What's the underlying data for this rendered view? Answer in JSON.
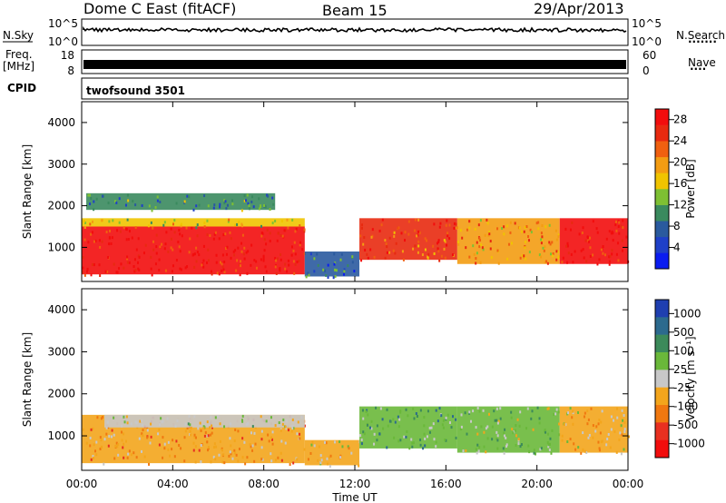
{
  "header": {
    "station": "Dome C East (fitACF)",
    "beam": "Beam 15",
    "date": "29/Apr/2013"
  },
  "strips": {
    "nsky_label": "N.Sky",
    "nsky_ticks": [
      "10^5",
      "10^0"
    ],
    "nsearch_label": "N.Search",
    "nsearch_dots": "·······",
    "freq_label": "Freq.",
    "freq_unit": "[MHz]",
    "freq_ticks": [
      "18",
      "8"
    ],
    "nave_ticks": [
      "60",
      "0"
    ],
    "nave_label": "Nave",
    "nave_dots": "····",
    "cpid_label": "CPID",
    "cpid_value": "twofsound 3501"
  },
  "axes": {
    "x_ticks": [
      "00:00",
      "04:00",
      "08:00",
      "12:00",
      "16:00",
      "20:00",
      "00:00"
    ],
    "x_label": "Time UT",
    "y_ticks": [
      "1000",
      "2000",
      "3000",
      "4000"
    ],
    "y_label": "Slant Range [km]"
  },
  "chart_data": [
    {
      "type": "heatmap",
      "name": "power",
      "title": "Beam 15",
      "xlabel": "Time UT",
      "ylabel": "Slant Range [km]",
      "xlim_hours": [
        0,
        24
      ],
      "ylim_km": [
        180,
        4500
      ],
      "colorbar": {
        "label": "Power [dB]",
        "ticks": [
          "4",
          "8",
          "12",
          "16",
          "20",
          "24",
          "28"
        ],
        "colors": [
          "#0a1cf0",
          "#1f40c8",
          "#2a5a9e",
          "#3a8a5e",
          "#7ec033",
          "#f0c400",
          "#f39c12",
          "#f06010",
          "#e82a10",
          "#f20d0d"
        ]
      },
      "regions": [
        {
          "t": [
            0,
            9.8
          ],
          "range_km": [
            350,
            1500
          ],
          "value_db": 28
        },
        {
          "t": [
            0,
            9.8
          ],
          "range_km": [
            1500,
            1700
          ],
          "value_db": 16
        },
        {
          "t": [
            0.2,
            8.5
          ],
          "range_km": [
            1900,
            2300
          ],
          "value_db": 10
        },
        {
          "t": [
            9.8,
            12.2
          ],
          "range_km": [
            300,
            900
          ],
          "value_db": 8
        },
        {
          "t": [
            12.2,
            16.5
          ],
          "range_km": [
            700,
            1700
          ],
          "value_db": 24
        },
        {
          "t": [
            16.5,
            21
          ],
          "range_km": [
            600,
            1700
          ],
          "value_db": 20
        },
        {
          "t": [
            21,
            24
          ],
          "range_km": [
            600,
            1700
          ],
          "value_db": 28
        }
      ]
    },
    {
      "type": "heatmap",
      "name": "velocity",
      "xlabel": "Time UT",
      "ylabel": "Slant Range [km]",
      "xlim_hours": [
        0,
        24
      ],
      "ylim_km": [
        180,
        4500
      ],
      "colorbar": {
        "label": "Velocity [m s⁻¹]",
        "ticks": [
          "1000",
          "500",
          "100",
          "25",
          "-25",
          "-100",
          "-500",
          "-1000"
        ],
        "colors": [
          "#1f3fb0",
          "#2c6a8e",
          "#3c8a5a",
          "#6ab83a",
          "#c8c8c8",
          "#f3a51c",
          "#f07810",
          "#e83020",
          "#f20d0d"
        ]
      },
      "regions": [
        {
          "t": [
            0,
            9.8
          ],
          "range_km": [
            350,
            1500
          ],
          "value_ms": -300
        },
        {
          "t": [
            1,
            9.8
          ],
          "range_km": [
            1200,
            1500
          ],
          "value_ms": 0
        },
        {
          "t": [
            9.8,
            12.2
          ],
          "range_km": [
            300,
            900
          ],
          "value_ms": -150
        },
        {
          "t": [
            12.2,
            16.5
          ],
          "range_km": [
            700,
            1700
          ],
          "value_ms": 300
        },
        {
          "t": [
            16.5,
            21
          ],
          "range_km": [
            600,
            1700
          ],
          "value_ms": 150
        },
        {
          "t": [
            21,
            24
          ],
          "range_km": [
            600,
            1700
          ],
          "value_ms": -200
        }
      ]
    }
  ]
}
